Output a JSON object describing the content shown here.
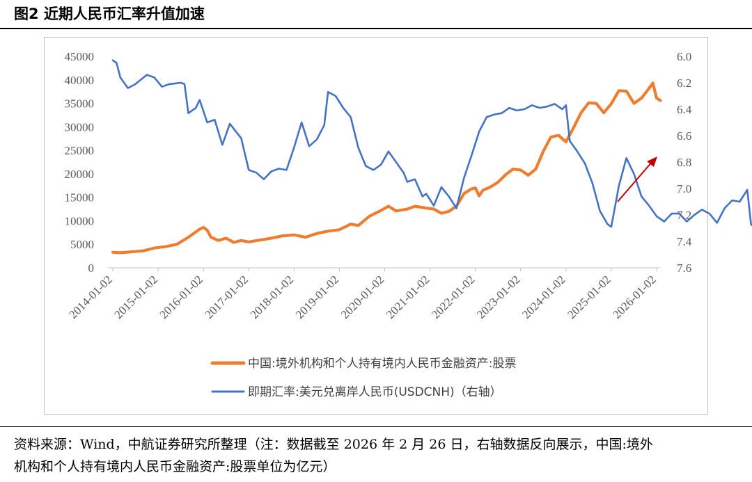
{
  "figure": {
    "title": "图2  近期人民币汇率升值加速"
  },
  "note": {
    "line1": "资料来源：Wind，中航证券研究所整理（注：数据截至 2026 年 2 月 26 日，右轴数据反向展示，中国:境外",
    "line2": "机构和个人持有境内人民币金融资产:股票单位为亿元）"
  },
  "chart_data": {
    "type": "line",
    "title": "",
    "xlabel": "",
    "ylabel": "",
    "x_tick_labels": [
      "2014-01-02",
      "2015-01-02",
      "2016-01-02",
      "2017-01-02",
      "2018-01-02",
      "2019-01-02",
      "2020-01-02",
      "2021-01-02",
      "2022-01-02",
      "2023-01-02",
      "2024-01-02",
      "2025-01-02",
      "2026-01-02"
    ],
    "y_left": {
      "ylim": [
        0,
        45000
      ],
      "ticks": [
        "0",
        "5000",
        "10000",
        "15000",
        "20000",
        "25000",
        "30000",
        "35000",
        "40000",
        "45000"
      ]
    },
    "y_right": {
      "ylim": [
        6.0,
        7.6
      ],
      "inverted": true,
      "ticks": [
        "6.0",
        "6.2",
        "6.4",
        "6.6",
        "6.8",
        "7.0",
        "7.2",
        "7.4",
        "7.6"
      ]
    },
    "grid": false,
    "legend_position": "bottom",
    "series": [
      {
        "name": "中国:境外机构和个人持有境内人民币金融资产:股票",
        "axis": "left",
        "color": "#ED7D31",
        "points": [
          [
            "2014-01",
            3300
          ],
          [
            "2014-03",
            3200
          ],
          [
            "2014-06",
            3400
          ],
          [
            "2014-09",
            3600
          ],
          [
            "2014-12",
            4200
          ],
          [
            "2015-03",
            4500
          ],
          [
            "2015-06",
            5000
          ],
          [
            "2015-09",
            6500
          ],
          [
            "2015-12",
            8200
          ],
          [
            "2016-01",
            8600
          ],
          [
            "2016-02",
            8000
          ],
          [
            "2016-03",
            6500
          ],
          [
            "2016-05",
            5800
          ],
          [
            "2016-07",
            6300
          ],
          [
            "2016-09",
            5400
          ],
          [
            "2016-11",
            5800
          ],
          [
            "2017-01",
            5500
          ],
          [
            "2017-04",
            5900
          ],
          [
            "2017-07",
            6300
          ],
          [
            "2017-10",
            6800
          ],
          [
            "2018-01",
            7000
          ],
          [
            "2018-04",
            6500
          ],
          [
            "2018-07",
            7300
          ],
          [
            "2018-10",
            7800
          ],
          [
            "2019-01",
            8100
          ],
          [
            "2019-04",
            9300
          ],
          [
            "2019-06",
            9000
          ],
          [
            "2019-09",
            11000
          ],
          [
            "2019-12",
            12200
          ],
          [
            "2020-02",
            13100
          ],
          [
            "2020-04",
            12100
          ],
          [
            "2020-07",
            12500
          ],
          [
            "2020-09",
            13100
          ],
          [
            "2020-12",
            12700
          ],
          [
            "2021-02",
            12500
          ],
          [
            "2021-04",
            11600
          ],
          [
            "2021-06",
            12000
          ],
          [
            "2021-08",
            13100
          ],
          [
            "2021-10",
            15800
          ],
          [
            "2021-12",
            16800
          ],
          [
            "2022-01",
            17000
          ],
          [
            "2022-02",
            15300
          ],
          [
            "2022-03",
            16500
          ],
          [
            "2022-05",
            17200
          ],
          [
            "2022-07",
            18200
          ],
          [
            "2022-09",
            19800
          ],
          [
            "2022-11",
            21000
          ],
          [
            "2023-01",
            20800
          ],
          [
            "2023-03",
            19700
          ],
          [
            "2023-05",
            21000
          ],
          [
            "2023-07",
            24800
          ],
          [
            "2023-09",
            27800
          ],
          [
            "2023-11",
            28200
          ],
          [
            "2024-01",
            26800
          ],
          [
            "2024-03",
            29800
          ],
          [
            "2024-05",
            33000
          ],
          [
            "2024-07",
            35100
          ],
          [
            "2024-09",
            35000
          ],
          [
            "2024-11",
            33000
          ],
          [
            "2025-01",
            34900
          ],
          [
            "2025-03",
            37700
          ],
          [
            "2025-05",
            37600
          ],
          [
            "2025-07",
            35000
          ],
          [
            "2025-09",
            36100
          ],
          [
            "2025-11",
            38200
          ],
          [
            "2025-12",
            39300
          ],
          [
            "2026-01",
            36100
          ],
          [
            "2026-02",
            35600
          ]
        ]
      },
      {
        "name": "即期汇率:美元兑离岸人民币(USDCNH)（右轴）",
        "axis": "right",
        "color": "#4472C4",
        "points": [
          [
            "2014-01",
            6.03
          ],
          [
            "2014-02",
            6.05
          ],
          [
            "2014-03",
            6.16
          ],
          [
            "2014-05",
            6.24
          ],
          [
            "2014-07",
            6.21
          ],
          [
            "2014-10",
            6.14
          ],
          [
            "2014-12",
            6.16
          ],
          [
            "2015-02",
            6.23
          ],
          [
            "2015-04",
            6.21
          ],
          [
            "2015-07",
            6.2
          ],
          [
            "2015-08",
            6.21
          ],
          [
            "2015-09",
            6.43
          ],
          [
            "2015-11",
            6.39
          ],
          [
            "2015-12",
            6.33
          ],
          [
            "2016-02",
            6.5
          ],
          [
            "2016-04",
            6.48
          ],
          [
            "2016-06",
            6.67
          ],
          [
            "2016-08",
            6.51
          ],
          [
            "2016-11",
            6.62
          ],
          [
            "2017-01",
            6.86
          ],
          [
            "2017-03",
            6.88
          ],
          [
            "2017-05",
            6.93
          ],
          [
            "2017-07",
            6.87
          ],
          [
            "2017-09",
            6.85
          ],
          [
            "2017-11",
            6.86
          ],
          [
            "2018-01",
            6.69
          ],
          [
            "2018-03",
            6.5
          ],
          [
            "2018-05",
            6.68
          ],
          [
            "2018-07",
            6.63
          ],
          [
            "2018-09",
            6.52
          ],
          [
            "2018-10",
            6.27
          ],
          [
            "2018-12",
            6.3
          ],
          [
            "2019-02",
            6.39
          ],
          [
            "2019-04",
            6.46
          ],
          [
            "2019-06",
            6.69
          ],
          [
            "2019-08",
            6.83
          ],
          [
            "2019-10",
            6.86
          ],
          [
            "2019-12",
            6.82
          ],
          [
            "2020-02",
            6.72
          ],
          [
            "2020-04",
            6.8
          ],
          [
            "2020-06",
            6.88
          ],
          [
            "2020-07",
            6.95
          ],
          [
            "2020-09",
            6.93
          ],
          [
            "2020-11",
            7.06
          ],
          [
            "2020-12",
            7.04
          ],
          [
            "2021-02",
            7.13
          ],
          [
            "2021-04",
            6.99
          ],
          [
            "2021-06",
            7.06
          ],
          [
            "2021-08",
            7.15
          ],
          [
            "2021-10",
            6.92
          ],
          [
            "2021-12",
            6.75
          ],
          [
            "2022-02",
            6.57
          ],
          [
            "2022-04",
            6.46
          ],
          [
            "2022-06",
            6.44
          ],
          [
            "2022-08",
            6.43
          ],
          [
            "2022-10",
            6.39
          ],
          [
            "2022-12",
            6.41
          ],
          [
            "2023-02",
            6.4
          ],
          [
            "2023-04",
            6.37
          ],
          [
            "2023-06",
            6.39
          ],
          [
            "2023-08",
            6.38
          ],
          [
            "2023-10",
            6.36
          ],
          [
            "2023-12",
            6.4
          ],
          [
            "2024-01",
            6.37
          ],
          [
            "2024-02",
            6.64
          ],
          [
            "2024-04",
            6.72
          ],
          [
            "2024-06",
            6.81
          ],
          [
            "2024-08",
            6.96
          ],
          [
            "2024-10",
            7.17
          ],
          [
            "2024-12",
            7.27
          ],
          [
            "2025-01",
            7.29
          ],
          [
            "2025-03",
            6.98
          ],
          [
            "2025-05",
            6.77
          ],
          [
            "2025-07",
            6.89
          ],
          [
            "2025-09",
            7.06
          ],
          [
            "2025-11",
            7.13
          ],
          [
            "2026-01",
            7.21
          ],
          [
            "2026-03",
            7.25
          ],
          [
            "2026-05",
            7.19
          ],
          [
            "2026-07",
            7.19
          ],
          [
            "2026-09",
            7.25
          ],
          [
            "2026-11",
            7.2
          ],
          [
            "2027-01",
            7.16
          ],
          [
            "2027-03",
            7.19
          ],
          [
            "2027-05",
            7.26
          ],
          [
            "2027-07",
            7.15
          ],
          [
            "2027-09",
            7.09
          ],
          [
            "2027-11",
            7.1
          ],
          [
            "2028-01",
            7.01
          ],
          [
            "2028-02",
            7.27
          ],
          [
            "2028-04",
            7.33
          ],
          [
            "2028-06",
            7.36
          ],
          [
            "2028-07",
            7.24
          ],
          [
            "2028-08",
            7.27
          ],
          [
            "2028-10",
            7.3
          ],
          [
            "2028-12",
            7.32
          ],
          [
            "2029-02",
            7.25
          ],
          [
            "2029-04",
            7.23
          ],
          [
            "2029-06",
            7.24
          ],
          [
            "2029-08",
            7.15
          ],
          [
            "2029-10",
            7.11
          ],
          [
            "2029-12",
            7.05
          ],
          [
            "2030-02",
            6.96
          ],
          [
            "2030-03",
            6.88
          ]
        ]
      }
    ]
  }
}
